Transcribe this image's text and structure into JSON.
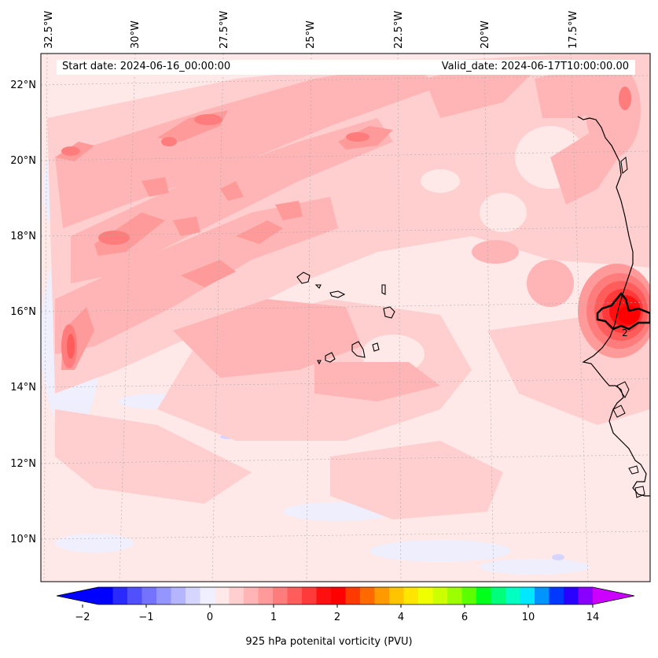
{
  "header": {
    "start_date": "Start date: 2024-06-16_00:00:00",
    "valid_date": "Valid_date: 2024-06-17T10:00:00.00"
  },
  "map": {
    "lon_labels": [
      "32.5°W",
      "30°W",
      "27.5°W",
      "25°W",
      "22.5°W",
      "20°W",
      "17.5°W"
    ],
    "lat_labels": [
      "22°N",
      "20°N",
      "18°N",
      "16°N",
      "14°N",
      "12°N",
      "10°N"
    ],
    "contour_label": "2"
  },
  "colorbar": {
    "tick_labels": [
      "−2",
      "−1",
      "0",
      "1",
      "2",
      "4",
      "6",
      "10",
      "14"
    ],
    "label": "925 hPa potenital vorticity (PVU)",
    "colors": [
      "#0000ff",
      "#2a2aff",
      "#5050ff",
      "#7373ff",
      "#9595ff",
      "#b5b5ff",
      "#d5d5ff",
      "#efefff",
      "#ffe8e8",
      "#ffcfcf",
      "#ffb5b5",
      "#ff9a9a",
      "#ff7c7c",
      "#ff5c5c",
      "#ff3a3a",
      "#ff1010",
      "#ff0000",
      "#ff3a00",
      "#ff6a00",
      "#ff9a00",
      "#ffc400",
      "#ffe600",
      "#f0ff00",
      "#ccff00",
      "#9cff00",
      "#5cff00",
      "#00ff1a",
      "#00ff7a",
      "#00ffc0",
      "#00e8ff",
      "#0094ff",
      "#0038ff",
      "#2a00ff",
      "#8a00ff"
    ],
    "extend_low_color": "#0000ff",
    "extend_high_color": "#cc00ff"
  }
}
